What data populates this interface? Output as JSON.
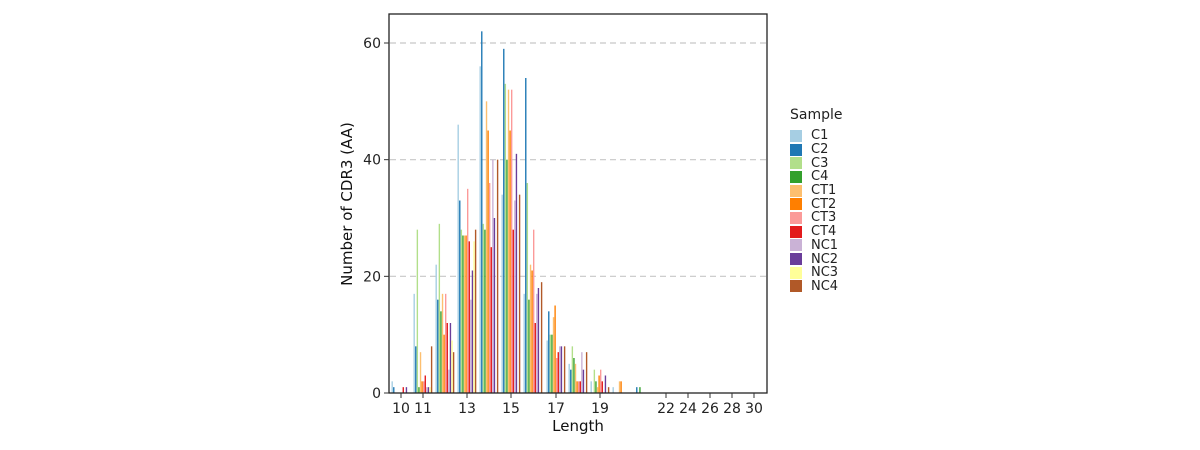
{
  "chart_data": {
    "type": "bar",
    "title": "",
    "xlabel": "Length",
    "ylabel": "Number of CDR3 (AA)",
    "ylim": [
      0,
      65
    ],
    "yticks": [
      0,
      20,
      40,
      60
    ],
    "grid": "horizontal dashed at major y ticks",
    "legend_title": "Sample",
    "legend_position": "right",
    "categories": [
      "10",
      "11",
      "12",
      "13",
      "14",
      "15",
      "16",
      "17",
      "18",
      "19",
      "20",
      "21",
      "22",
      "24",
      "26",
      "28",
      "30"
    ],
    "xtick_labels": [
      "10",
      "11",
      "13",
      "15",
      "17",
      "19",
      "22",
      "24",
      "26",
      "28",
      "30"
    ],
    "series": [
      {
        "name": "C1",
        "color": "#A6CEE3",
        "values": [
          2,
          17,
          22,
          46,
          56,
          34,
          17,
          9,
          5,
          2,
          1,
          0,
          0,
          0,
          0,
          0,
          0
        ]
      },
      {
        "name": "C2",
        "color": "#1F78B4",
        "values": [
          1,
          8,
          16,
          33,
          62,
          59,
          54,
          14,
          4,
          0,
          0,
          1,
          0,
          0,
          0,
          0,
          0
        ]
      },
      {
        "name": "C3",
        "color": "#B2DF8A",
        "values": [
          0,
          28,
          29,
          28,
          29,
          53,
          36,
          10,
          8,
          4,
          0,
          0,
          0,
          0,
          0,
          0,
          0
        ]
      },
      {
        "name": "C4",
        "color": "#33A02C",
        "values": [
          0,
          1,
          14,
          27,
          28,
          40,
          16,
          10,
          6,
          2,
          0,
          1,
          0,
          0,
          0,
          0,
          0
        ]
      },
      {
        "name": "CT1",
        "color": "#FDBF6F",
        "values": [
          0,
          7,
          17,
          27,
          50,
          52,
          22,
          13,
          5,
          1,
          2,
          0,
          0,
          0,
          0,
          0,
          0
        ]
      },
      {
        "name": "CT2",
        "color": "#FF7F00",
        "values": [
          0,
          2,
          10,
          27,
          45,
          45,
          21,
          15,
          2,
          3,
          2,
          0,
          0,
          0,
          0,
          0,
          0
        ]
      },
      {
        "name": "CT3",
        "color": "#FB9A99",
        "values": [
          0,
          2,
          17,
          35,
          36,
          52,
          28,
          6,
          2,
          4,
          0,
          0,
          0,
          0,
          0,
          0,
          0
        ]
      },
      {
        "name": "CT4",
        "color": "#E31A1C",
        "values": [
          1,
          3,
          12,
          26,
          25,
          28,
          12,
          7,
          2,
          2,
          0,
          0,
          0,
          0,
          0,
          0,
          0
        ]
      },
      {
        "name": "NC1",
        "color": "#CAB2D6",
        "values": [
          0,
          1,
          4,
          16,
          40,
          33,
          17,
          8,
          7,
          0,
          0,
          0,
          0,
          0,
          0,
          0,
          0
        ]
      },
      {
        "name": "NC2",
        "color": "#6A3D9A",
        "values": [
          1,
          1,
          12,
          21,
          30,
          41,
          18,
          8,
          4,
          3,
          0,
          0,
          0,
          0,
          0,
          0,
          0
        ]
      },
      {
        "name": "NC3",
        "color": "#FFFF99",
        "values": [
          0,
          1,
          9,
          26,
          0,
          0,
          0,
          0,
          0,
          0,
          0,
          0,
          0,
          0,
          0,
          0,
          0
        ]
      },
      {
        "name": "NC4",
        "color": "#B15928",
        "values": [
          0,
          8,
          7,
          28,
          40,
          34,
          19,
          8,
          7,
          1,
          0,
          0,
          0,
          0,
          0,
          0,
          0
        ]
      }
    ]
  },
  "legend": {
    "title": "Sample",
    "items": [
      {
        "label": "C1",
        "color": "#A6CEE3"
      },
      {
        "label": "C2",
        "color": "#1F78B4"
      },
      {
        "label": "C3",
        "color": "#B2DF8A"
      },
      {
        "label": "C4",
        "color": "#33A02C"
      },
      {
        "label": "CT1",
        "color": "#FDBF6F"
      },
      {
        "label": "CT2",
        "color": "#FF7F00"
      },
      {
        "label": "CT3",
        "color": "#FB9A99"
      },
      {
        "label": "CT4",
        "color": "#E31A1C"
      },
      {
        "label": "NC1",
        "color": "#CAB2D6"
      },
      {
        "label": "NC2",
        "color": "#6A3D9A"
      },
      {
        "label": "NC3",
        "color": "#FFFF99"
      },
      {
        "label": "NC4",
        "color": "#B15928"
      }
    ]
  },
  "axes": {
    "xlabel": "Length",
    "ylabel": "Number of CDR3 (AA)"
  }
}
